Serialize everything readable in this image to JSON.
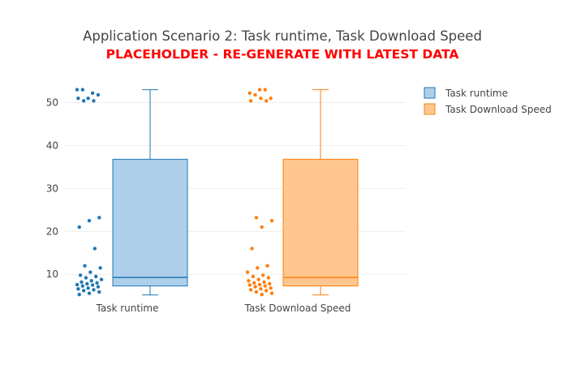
{
  "chart_data": {
    "type": "box",
    "title": "Application Scenario 2: Task runtime, Task Download Speed",
    "subtitle": "PLACEHOLDER - RE-GENERATE WITH LATEST DATA",
    "xlabel": "",
    "ylabel": "",
    "ylim": [
      4,
      55
    ],
    "yticks": [
      10,
      20,
      30,
      40,
      50
    ],
    "grid": true,
    "legend_position": "top-right",
    "categories": [
      "Task runtime",
      "Task Download Speed"
    ],
    "series": [
      {
        "name": "Task runtime",
        "color": "#1f77b4",
        "fill": "#aecfea",
        "min": 5.2,
        "q1": 7.3,
        "median": 9.3,
        "q3": 36.8,
        "max": 53,
        "points": [
          53,
          52.2,
          53,
          51.8,
          51,
          51,
          50.4,
          50.4,
          23.2,
          22.5,
          21,
          16,
          12,
          11.5,
          10.5,
          9.8,
          9.5,
          9.2,
          8.8,
          8.5,
          8.2,
          8,
          7.8,
          7.6,
          7.5,
          7.3,
          7.1,
          6.8,
          6.6,
          6.4,
          6.2,
          5.9,
          5.6,
          5.3
        ]
      },
      {
        "name": "Task Download Speed",
        "color": "#ff7f0e",
        "fill": "#ffc78f",
        "min": 5.2,
        "q1": 7.3,
        "median": 9.3,
        "q3": 36.8,
        "max": 53,
        "points": [
          53,
          52.2,
          53,
          51.8,
          51,
          51,
          50.4,
          50.4,
          23.2,
          22.5,
          21,
          16,
          12,
          11.5,
          10.5,
          9.8,
          9.5,
          9.2,
          8.8,
          8.5,
          8.2,
          8,
          7.8,
          7.6,
          7.5,
          7.3,
          7.1,
          6.8,
          6.6,
          6.4,
          6.2,
          5.9,
          5.6,
          5.3
        ]
      }
    ]
  }
}
